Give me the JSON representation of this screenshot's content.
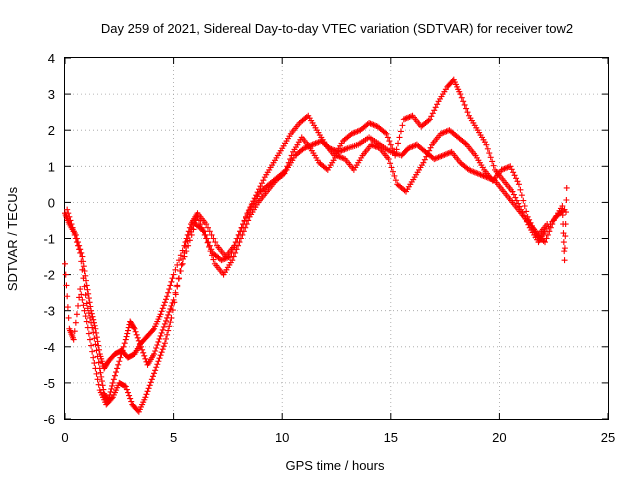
{
  "chart_data": {
    "type": "scatter",
    "title": "Day 259 of 2021, Sidereal Day-to-day VTEC variation (SDTVAR) for receiver tow2",
    "xlabel": "GPS time / hours",
    "ylabel": "SDTVAR / TECUs",
    "xlim": [
      0,
      25
    ],
    "ylim": [
      -6,
      4
    ],
    "xticks": [
      "0",
      "5",
      "10",
      "15",
      "20",
      "25"
    ],
    "yticks": [
      "-6",
      "-5",
      "-4",
      "-3",
      "-2",
      "-1",
      "0",
      "1",
      "2",
      "3",
      "4"
    ],
    "grid": true,
    "marker": "plus",
    "color": "#ff0000",
    "series": [
      {
        "points": [
          [
            0.0,
            -0.3
          ],
          [
            0.2,
            -0.6
          ],
          [
            0.5,
            -0.9
          ],
          [
            0.8,
            -1.5
          ],
          [
            1.0,
            -2.3
          ],
          [
            1.2,
            -3.0
          ],
          [
            1.4,
            -3.5
          ],
          [
            1.6,
            -4.2
          ],
          [
            1.8,
            -4.6
          ],
          [
            2.0,
            -4.4
          ],
          [
            2.3,
            -4.2
          ],
          [
            2.6,
            -4.1
          ],
          [
            2.9,
            -4.3
          ],
          [
            3.2,
            -4.2
          ],
          [
            3.5,
            -3.9
          ],
          [
            3.8,
            -3.7
          ],
          [
            4.1,
            -3.5
          ],
          [
            4.4,
            -3.1
          ],
          [
            4.7,
            -2.6
          ],
          [
            5.0,
            -2.0
          ],
          [
            5.5,
            -1.2
          ],
          [
            5.8,
            -0.6
          ],
          [
            6.1,
            -0.3
          ],
          [
            6.5,
            -0.6
          ],
          [
            7.0,
            -1.2
          ],
          [
            7.4,
            -1.5
          ],
          [
            7.8,
            -1.2
          ],
          [
            8.2,
            -0.6
          ],
          [
            8.6,
            -0.1
          ],
          [
            9.0,
            0.3
          ],
          [
            9.4,
            0.5
          ],
          [
            9.8,
            0.7
          ],
          [
            10.2,
            0.9
          ],
          [
            10.6,
            1.3
          ],
          [
            11.0,
            1.5
          ],
          [
            11.4,
            1.6
          ],
          [
            11.8,
            1.7
          ],
          [
            12.2,
            1.5
          ],
          [
            12.6,
            1.4
          ],
          [
            13.0,
            1.5
          ],
          [
            13.5,
            1.6
          ],
          [
            14.0,
            1.8
          ],
          [
            14.5,
            1.6
          ],
          [
            15.0,
            1.4
          ],
          [
            15.5,
            1.3
          ],
          [
            15.8,
            1.5
          ],
          [
            16.2,
            1.6
          ],
          [
            16.6,
            1.4
          ],
          [
            17.0,
            1.2
          ],
          [
            17.4,
            1.3
          ],
          [
            17.8,
            1.4
          ],
          [
            18.2,
            1.1
          ],
          [
            18.6,
            0.9
          ],
          [
            19.0,
            0.8
          ],
          [
            19.4,
            0.7
          ],
          [
            19.8,
            0.6
          ],
          [
            20.2,
            0.3
          ],
          [
            20.6,
            0.0
          ],
          [
            21.0,
            -0.3
          ],
          [
            21.4,
            -0.6
          ],
          [
            21.8,
            -0.9
          ],
          [
            22.2,
            -0.6
          ]
        ]
      },
      {
        "points": [
          [
            0.1,
            -0.2
          ],
          [
            0.4,
            -0.8
          ],
          [
            0.7,
            -1.4
          ],
          [
            1.0,
            -2.8
          ],
          [
            1.3,
            -3.6
          ],
          [
            1.6,
            -4.6
          ],
          [
            1.8,
            -5.3
          ],
          [
            2.0,
            -5.5
          ],
          [
            2.2,
            -5.0
          ],
          [
            2.5,
            -4.4
          ],
          [
            2.8,
            -3.8
          ],
          [
            3.0,
            -3.3
          ],
          [
            3.2,
            -3.5
          ],
          [
            3.5,
            -4.0
          ],
          [
            3.8,
            -4.5
          ],
          [
            4.1,
            -4.2
          ],
          [
            4.4,
            -3.7
          ],
          [
            4.7,
            -3.2
          ],
          [
            5.0,
            -2.7
          ],
          [
            5.5,
            -1.5
          ],
          [
            6.0,
            -0.6
          ],
          [
            6.4,
            -0.8
          ],
          [
            6.8,
            -1.4
          ],
          [
            7.2,
            -1.6
          ],
          [
            7.6,
            -1.5
          ],
          [
            8.0,
            -0.9
          ],
          [
            8.4,
            -0.3
          ],
          [
            8.8,
            0.2
          ],
          [
            9.2,
            0.7
          ],
          [
            9.6,
            1.1
          ],
          [
            10.0,
            1.5
          ],
          [
            10.4,
            1.9
          ],
          [
            10.8,
            2.2
          ],
          [
            11.2,
            2.4
          ],
          [
            11.6,
            2.0
          ],
          [
            12.0,
            1.6
          ],
          [
            12.4,
            1.3
          ],
          [
            12.8,
            1.7
          ],
          [
            13.2,
            1.9
          ],
          [
            13.6,
            2.0
          ],
          [
            14.0,
            2.2
          ],
          [
            14.4,
            2.1
          ],
          [
            14.8,
            1.9
          ],
          [
            15.2,
            1.3
          ],
          [
            15.6,
            2.3
          ],
          [
            16.0,
            2.4
          ],
          [
            16.4,
            2.1
          ],
          [
            16.8,
            2.3
          ],
          [
            17.2,
            2.8
          ],
          [
            17.6,
            3.2
          ],
          [
            17.9,
            3.4
          ],
          [
            18.2,
            3.0
          ],
          [
            18.6,
            2.4
          ],
          [
            19.0,
            2.0
          ],
          [
            19.4,
            1.6
          ],
          [
            19.8,
            0.9
          ],
          [
            20.2,
            0.6
          ],
          [
            20.6,
            0.3
          ],
          [
            21.0,
            -0.2
          ],
          [
            21.4,
            -0.7
          ],
          [
            21.8,
            -1.1
          ],
          [
            22.1,
            -0.8
          ],
          [
            22.6,
            -0.4
          ],
          [
            23.0,
            -0.2
          ]
        ]
      },
      {
        "points": [
          [
            0.0,
            -1.7
          ],
          [
            0.2,
            -3.5
          ],
          [
            0.4,
            -3.8
          ],
          [
            0.7,
            -2.4
          ],
          [
            1.0,
            -3.3
          ],
          [
            1.3,
            -4.3
          ],
          [
            1.6,
            -5.2
          ],
          [
            1.9,
            -5.6
          ],
          [
            2.2,
            -5.4
          ],
          [
            2.5,
            -5.0
          ],
          [
            2.8,
            -5.1
          ],
          [
            3.1,
            -5.6
          ],
          [
            3.4,
            -5.8
          ],
          [
            3.7,
            -5.4
          ],
          [
            4.0,
            -4.9
          ],
          [
            4.3,
            -4.4
          ],
          [
            4.6,
            -3.9
          ],
          [
            4.9,
            -3.2
          ],
          [
            5.3,
            -1.9
          ],
          [
            5.7,
            -0.9
          ],
          [
            6.1,
            -0.4
          ],
          [
            6.5,
            -1.0
          ],
          [
            6.9,
            -1.7
          ],
          [
            7.3,
            -2.0
          ],
          [
            7.7,
            -1.6
          ],
          [
            8.1,
            -1.0
          ],
          [
            8.5,
            -0.4
          ],
          [
            8.9,
            0.0
          ],
          [
            9.3,
            0.3
          ],
          [
            9.7,
            0.6
          ],
          [
            10.1,
            0.8
          ],
          [
            10.5,
            1.4
          ],
          [
            10.9,
            1.8
          ],
          [
            11.3,
            1.5
          ],
          [
            11.7,
            1.1
          ],
          [
            12.1,
            0.9
          ],
          [
            12.5,
            1.3
          ],
          [
            12.9,
            1.2
          ],
          [
            13.3,
            0.9
          ],
          [
            13.7,
            1.3
          ],
          [
            14.1,
            1.6
          ],
          [
            14.5,
            1.5
          ],
          [
            14.9,
            1.2
          ],
          [
            15.3,
            0.5
          ],
          [
            15.7,
            0.3
          ],
          [
            16.1,
            0.7
          ],
          [
            16.5,
            1.1
          ],
          [
            16.9,
            1.6
          ],
          [
            17.3,
            1.9
          ],
          [
            17.7,
            2.0
          ],
          [
            18.1,
            1.8
          ],
          [
            18.5,
            1.6
          ],
          [
            18.9,
            1.3
          ],
          [
            19.3,
            0.9
          ],
          [
            19.7,
            0.6
          ],
          [
            20.1,
            0.9
          ],
          [
            20.5,
            1.0
          ],
          [
            20.9,
            0.5
          ],
          [
            21.3,
            -0.4
          ],
          [
            21.7,
            -0.9
          ],
          [
            22.1,
            -1.1
          ],
          [
            22.5,
            -0.5
          ],
          [
            22.9,
            -0.1
          ],
          [
            23.0,
            -1.6
          ],
          [
            23.1,
            0.4
          ]
        ]
      }
    ]
  }
}
